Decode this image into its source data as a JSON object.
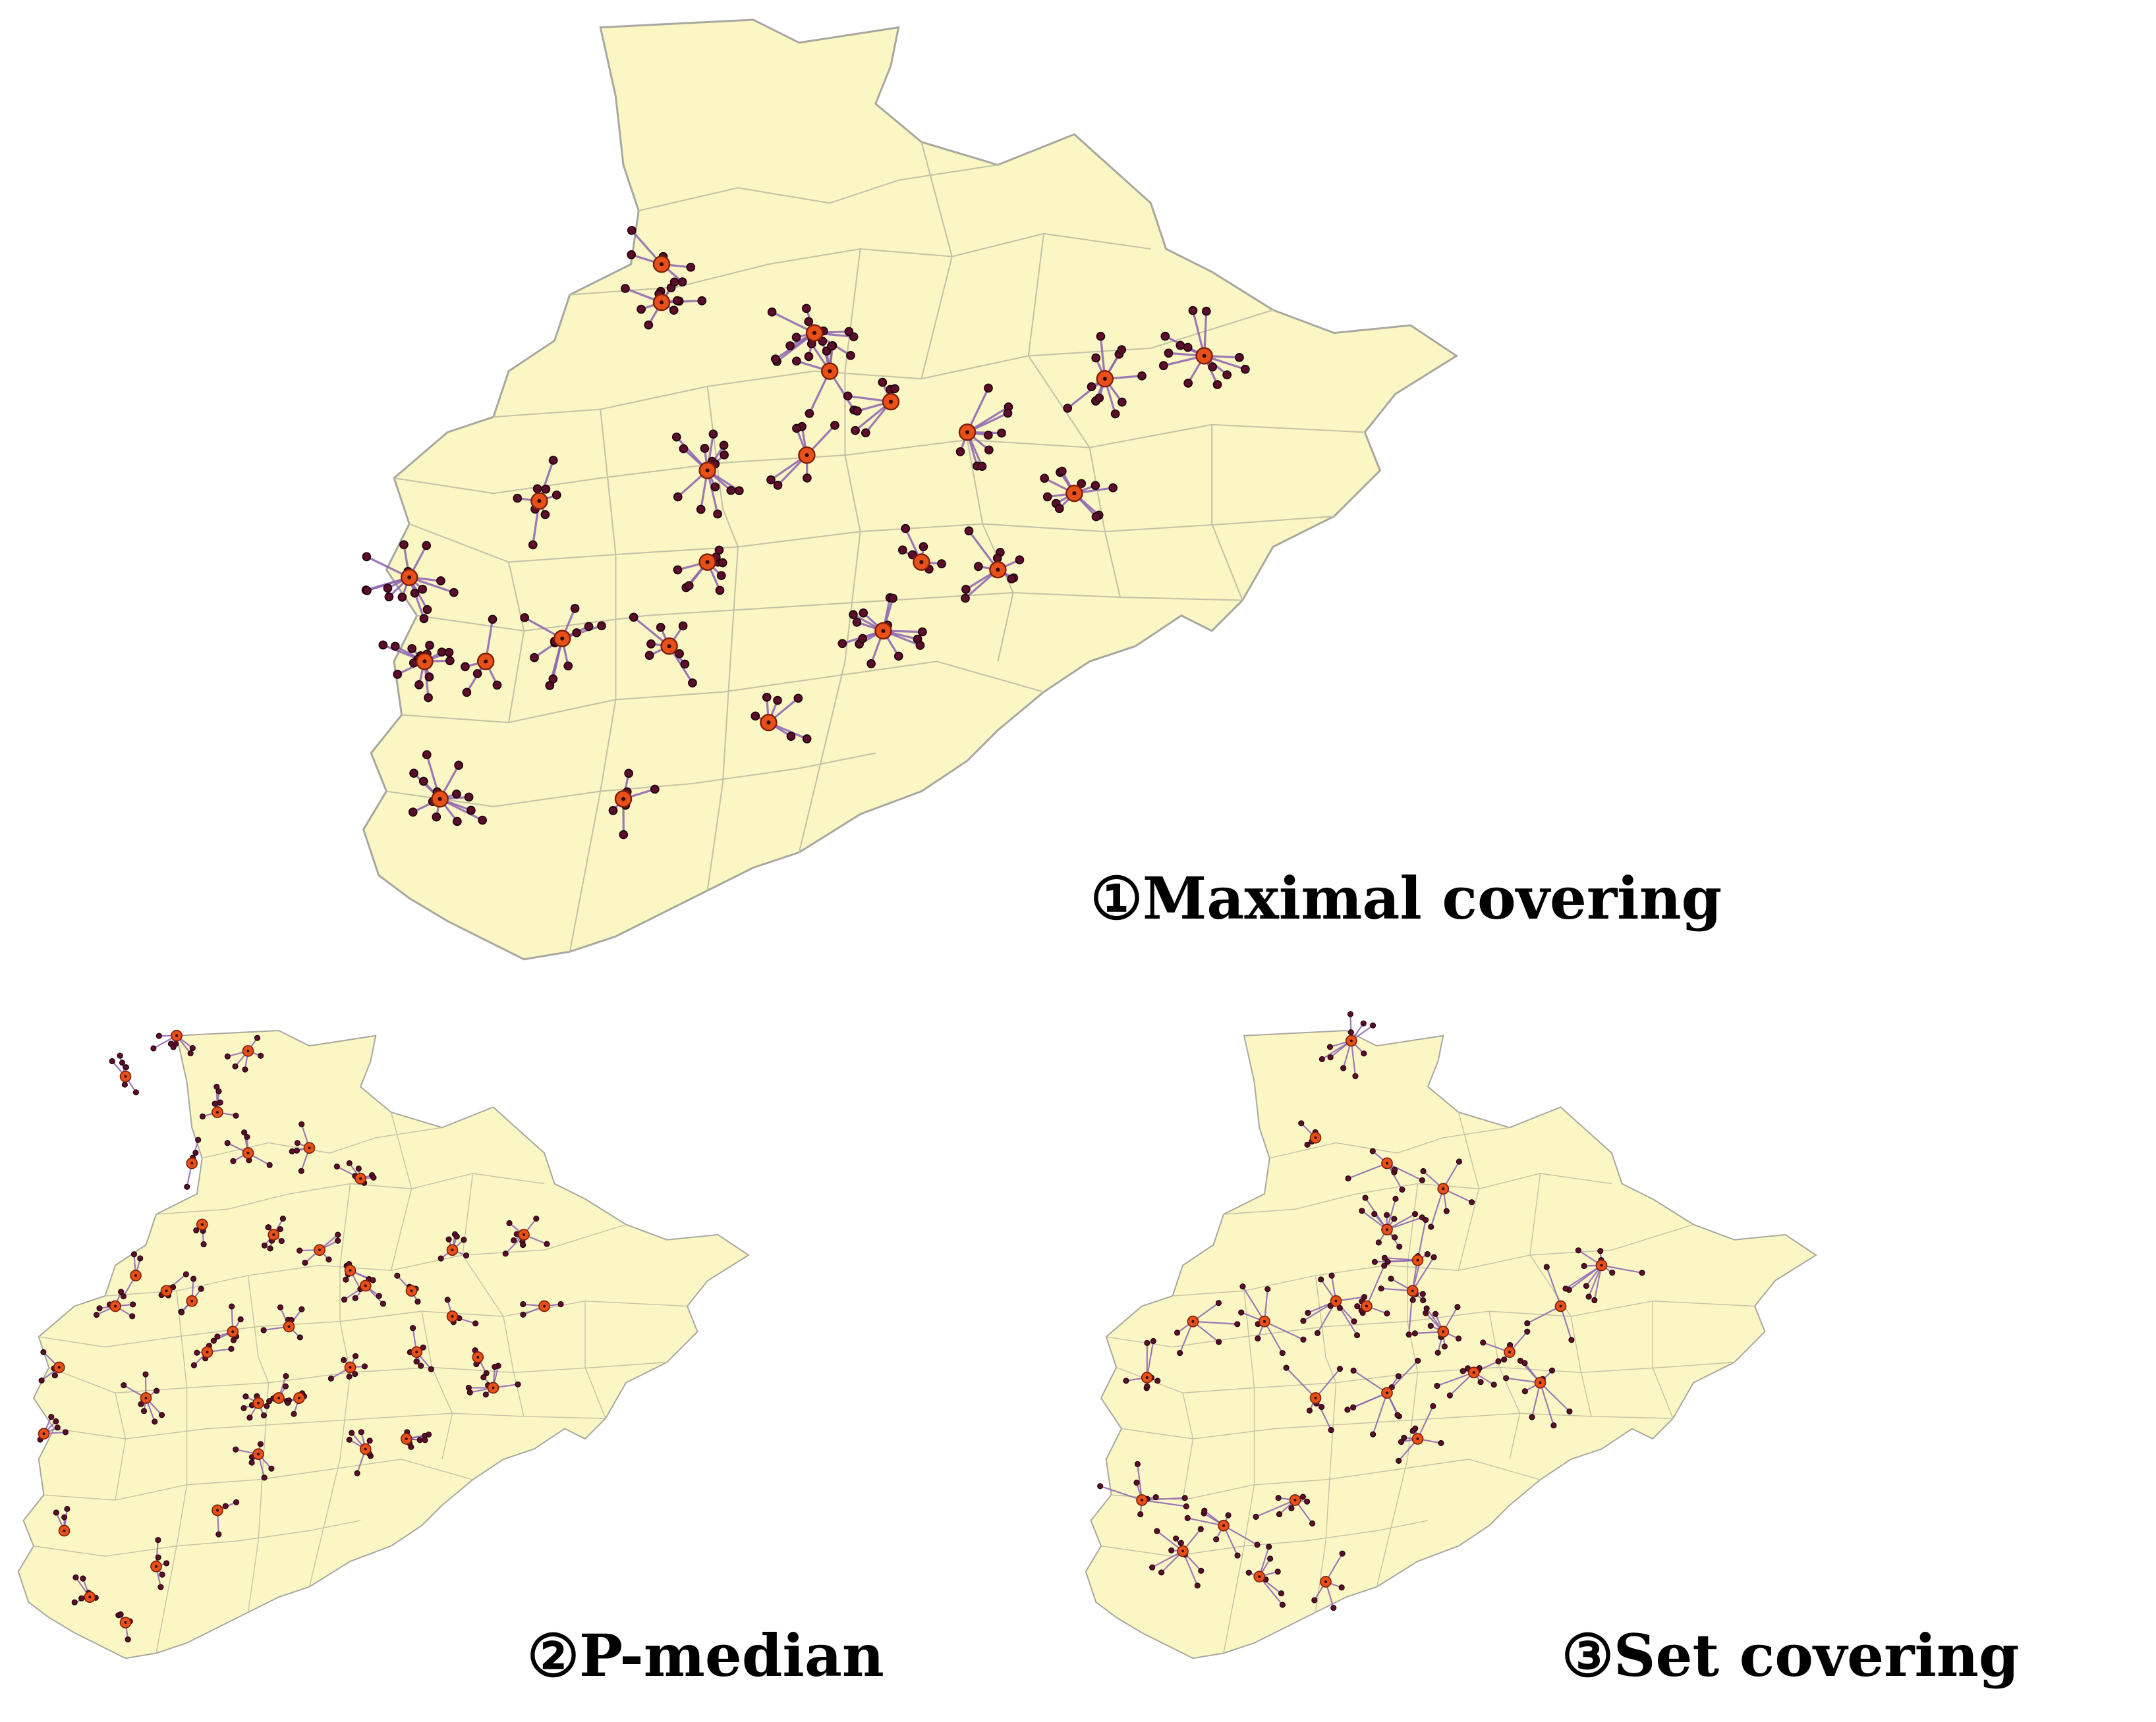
{
  "maps": [
    {
      "id": "maximal-covering",
      "label": "①Maximal covering"
    },
    {
      "id": "p-median",
      "label": "②P-median"
    },
    {
      "id": "set-covering",
      "label": "③Set covering"
    }
  ],
  "colors": {
    "region_fill": "#fbf7c4",
    "region_border": "#a8a8a0",
    "district_border": "#c4c2a8",
    "demand_point": "#5c0d2a",
    "demand_point_stroke": "#1a0008",
    "facility": "#e8501a",
    "facility_stroke": "#7a1e05",
    "link": "#8b62b2"
  }
}
